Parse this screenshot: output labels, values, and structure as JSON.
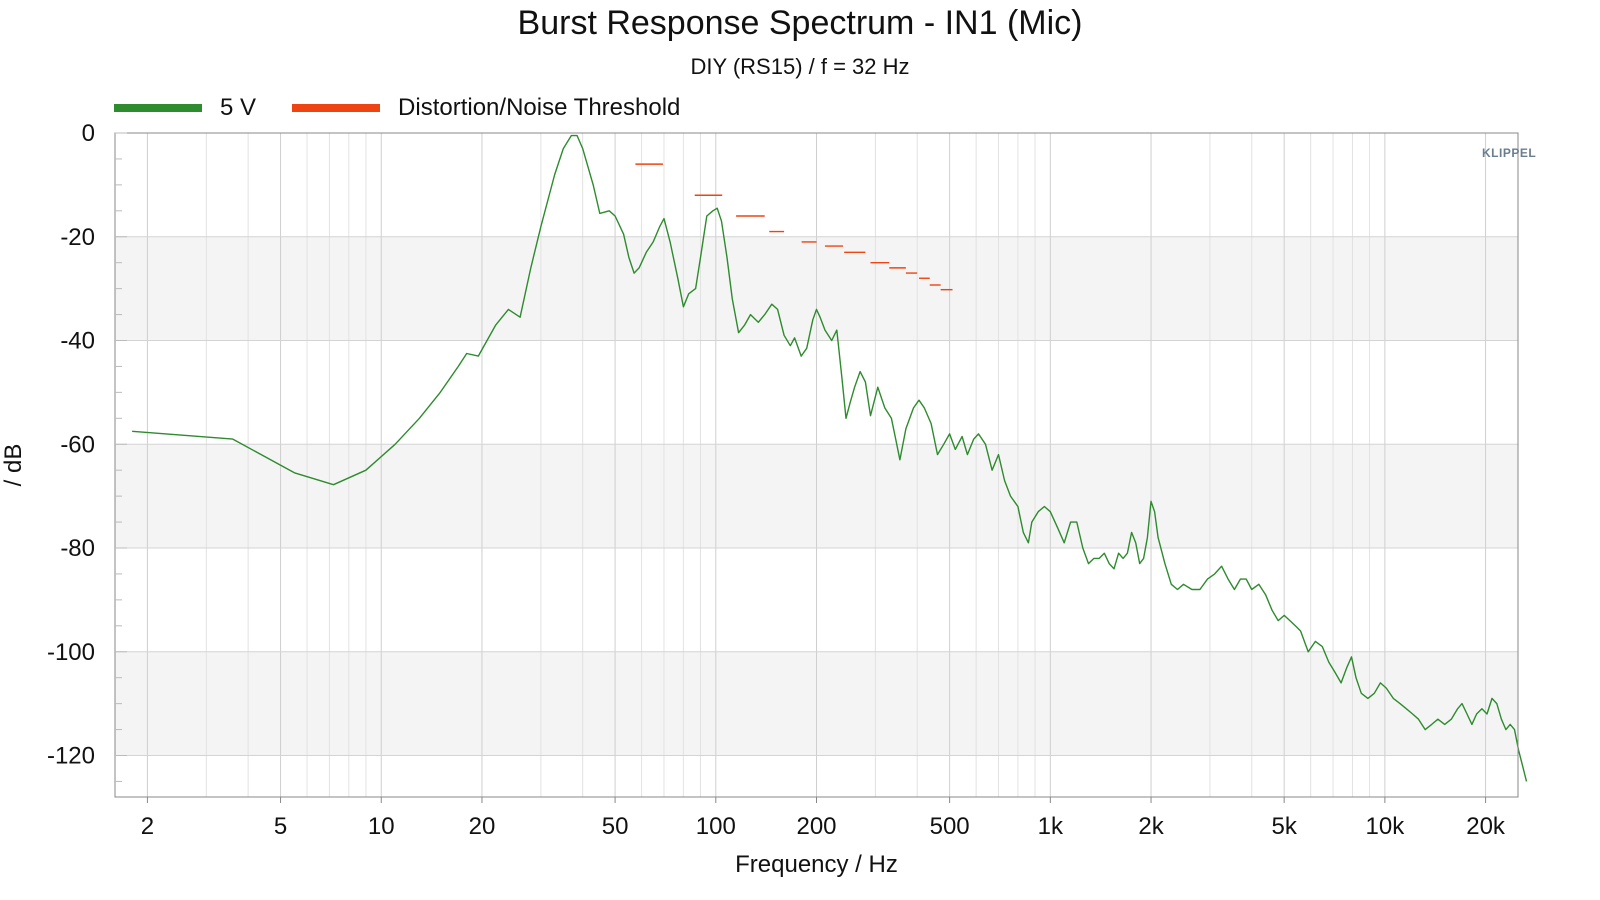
{
  "chart_data": {
    "type": "line",
    "title": "Burst Response Spectrum - IN1 (Mic)",
    "subtitle": "DIY (RS15) / f = 32 Hz",
    "xlabel": "Frequency / Hz",
    "ylabel": "/ dB",
    "xscale": "log",
    "xlim": [
      1.6,
      25000
    ],
    "ylim": [
      -128,
      0
    ],
    "grid": true,
    "legend_placement": "top-left",
    "x_ticks": [
      {
        "value": 2,
        "label": "2"
      },
      {
        "value": 5,
        "label": "5"
      },
      {
        "value": 10,
        "label": "10"
      },
      {
        "value": 20,
        "label": "20"
      },
      {
        "value": 50,
        "label": "50"
      },
      {
        "value": 100,
        "label": "100"
      },
      {
        "value": 200,
        "label": "200"
      },
      {
        "value": 500,
        "label": "500"
      },
      {
        "value": 1000,
        "label": "1k"
      },
      {
        "value": 2000,
        "label": "2k"
      },
      {
        "value": 5000,
        "label": "5k"
      },
      {
        "value": 10000,
        "label": "10k"
      },
      {
        "value": 20000,
        "label": "20k"
      }
    ],
    "y_ticks": [
      0,
      -20,
      -40,
      -60,
      -80,
      -100,
      -120
    ],
    "series": [
      {
        "name": "5 V",
        "color": "#2e8b2e",
        "style": "line",
        "points": [
          [
            1.8,
            -57.5
          ],
          [
            3.6,
            -59
          ],
          [
            5.5,
            -65.5
          ],
          [
            7.2,
            -67.8
          ],
          [
            9,
            -65
          ],
          [
            11,
            -60
          ],
          [
            13,
            -55
          ],
          [
            15,
            -50
          ],
          [
            17,
            -45
          ],
          [
            18,
            -42.5
          ],
          [
            19.5,
            -43
          ],
          [
            22,
            -37
          ],
          [
            24,
            -34
          ],
          [
            26,
            -35.5
          ],
          [
            28,
            -26
          ],
          [
            30,
            -18
          ],
          [
            33,
            -8
          ],
          [
            35,
            -3
          ],
          [
            37,
            -0.5
          ],
          [
            38.5,
            -0.5
          ],
          [
            40,
            -3
          ],
          [
            43,
            -10
          ],
          [
            45,
            -15.5
          ],
          [
            48,
            -15
          ],
          [
            50,
            -16
          ],
          [
            53,
            -19.5
          ],
          [
            55,
            -24
          ],
          [
            57,
            -27
          ],
          [
            59,
            -26
          ],
          [
            62,
            -23
          ],
          [
            65,
            -21
          ],
          [
            68,
            -18
          ],
          [
            70,
            -16.5
          ],
          [
            73,
            -21
          ],
          [
            77,
            -28
          ],
          [
            80,
            -33.5
          ],
          [
            83,
            -31
          ],
          [
            87,
            -30
          ],
          [
            90,
            -24
          ],
          [
            94,
            -16
          ],
          [
            98,
            -15
          ],
          [
            101,
            -14.5
          ],
          [
            104,
            -17
          ],
          [
            108,
            -24
          ],
          [
            112,
            -32
          ],
          [
            117,
            -38.5
          ],
          [
            122,
            -37
          ],
          [
            127,
            -35
          ],
          [
            134,
            -36.5
          ],
          [
            140,
            -35
          ],
          [
            147,
            -33
          ],
          [
            153,
            -34
          ],
          [
            160,
            -39
          ],
          [
            167,
            -41
          ],
          [
            172,
            -39.5
          ],
          [
            180,
            -43
          ],
          [
            187,
            -41.5
          ],
          [
            195,
            -36
          ],
          [
            200,
            -34
          ],
          [
            205,
            -35.5
          ],
          [
            212,
            -38
          ],
          [
            222,
            -40
          ],
          [
            230,
            -38
          ],
          [
            238,
            -47
          ],
          [
            245,
            -55
          ],
          [
            252,
            -52
          ],
          [
            260,
            -49
          ],
          [
            270,
            -46
          ],
          [
            280,
            -48
          ],
          [
            290,
            -54.5
          ],
          [
            305,
            -49
          ],
          [
            320,
            -53
          ],
          [
            335,
            -55
          ],
          [
            345,
            -59
          ],
          [
            355,
            -63
          ],
          [
            370,
            -57
          ],
          [
            390,
            -53
          ],
          [
            405,
            -51.5
          ],
          [
            420,
            -53
          ],
          [
            440,
            -56
          ],
          [
            460,
            -62
          ],
          [
            480,
            -60
          ],
          [
            500,
            -58
          ],
          [
            520,
            -61
          ],
          [
            545,
            -58.5
          ],
          [
            565,
            -62
          ],
          [
            590,
            -59
          ],
          [
            610,
            -58
          ],
          [
            640,
            -60
          ],
          [
            670,
            -65
          ],
          [
            700,
            -62
          ],
          [
            730,
            -67
          ],
          [
            760,
            -70
          ],
          [
            800,
            -72
          ],
          [
            830,
            -77
          ],
          [
            860,
            -79
          ],
          [
            880,
            -75
          ],
          [
            920,
            -73
          ],
          [
            960,
            -72
          ],
          [
            1000,
            -73
          ],
          [
            1050,
            -76
          ],
          [
            1100,
            -79
          ],
          [
            1150,
            -75
          ],
          [
            1200,
            -75
          ],
          [
            1250,
            -80
          ],
          [
            1300,
            -83
          ],
          [
            1350,
            -82
          ],
          [
            1400,
            -82
          ],
          [
            1450,
            -81
          ],
          [
            1500,
            -83
          ],
          [
            1550,
            -84
          ],
          [
            1600,
            -81
          ],
          [
            1650,
            -82
          ],
          [
            1700,
            -81
          ],
          [
            1750,
            -77
          ],
          [
            1800,
            -79
          ],
          [
            1850,
            -83
          ],
          [
            1900,
            -82
          ],
          [
            1950,
            -78
          ],
          [
            2000,
            -71
          ],
          [
            2050,
            -73
          ],
          [
            2100,
            -78
          ],
          [
            2200,
            -83
          ],
          [
            2300,
            -87
          ],
          [
            2400,
            -88
          ],
          [
            2500,
            -87
          ],
          [
            2650,
            -88
          ],
          [
            2800,
            -88
          ],
          [
            2950,
            -86
          ],
          [
            3100,
            -85
          ],
          [
            3250,
            -83.5
          ],
          [
            3400,
            -86
          ],
          [
            3550,
            -88
          ],
          [
            3700,
            -86
          ],
          [
            3850,
            -86
          ],
          [
            4000,
            -88
          ],
          [
            4200,
            -87
          ],
          [
            4400,
            -89
          ],
          [
            4600,
            -92
          ],
          [
            4800,
            -94
          ],
          [
            5000,
            -93
          ],
          [
            5200,
            -94
          ],
          [
            5400,
            -95
          ],
          [
            5600,
            -96
          ],
          [
            5900,
            -100
          ],
          [
            6200,
            -98
          ],
          [
            6500,
            -99
          ],
          [
            6800,
            -102
          ],
          [
            7100,
            -104
          ],
          [
            7400,
            -106
          ],
          [
            7700,
            -103
          ],
          [
            7950,
            -101
          ],
          [
            8200,
            -105
          ],
          [
            8500,
            -108
          ],
          [
            8900,
            -109
          ],
          [
            9300,
            -108
          ],
          [
            9700,
            -106
          ],
          [
            10100,
            -107
          ],
          [
            10600,
            -109
          ],
          [
            11100,
            -110
          ],
          [
            11600,
            -111
          ],
          [
            12100,
            -112
          ],
          [
            12600,
            -113
          ],
          [
            13200,
            -115
          ],
          [
            13800,
            -114
          ],
          [
            14400,
            -113
          ],
          [
            15100,
            -114
          ],
          [
            15800,
            -113
          ],
          [
            16500,
            -111
          ],
          [
            17000,
            -110
          ],
          [
            17600,
            -112
          ],
          [
            18200,
            -114
          ],
          [
            18800,
            -112
          ],
          [
            19500,
            -111
          ],
          [
            20200,
            -112
          ],
          [
            20900,
            -109
          ],
          [
            21600,
            -110
          ],
          [
            22300,
            -113
          ],
          [
            23000,
            -115
          ],
          [
            23700,
            -114
          ],
          [
            24400,
            -115
          ],
          [
            25100,
            -119
          ],
          [
            25800,
            -122
          ],
          [
            26500,
            -125
          ]
        ]
      },
      {
        "name": "Distortion/Noise Threshold",
        "color": "#ee4411",
        "style": "steps",
        "segments": [
          [
            57.5,
            69.5,
            -6
          ],
          [
            86.5,
            104.5,
            -12
          ],
          [
            115,
            140,
            -16
          ],
          [
            144.5,
            160,
            -19
          ],
          [
            180.5,
            200,
            -21
          ],
          [
            212,
            240,
            -21.8
          ],
          [
            242,
            280,
            -23
          ],
          [
            290,
            330,
            -25
          ],
          [
            330,
            370,
            -26
          ],
          [
            370,
            400,
            -27
          ],
          [
            405,
            436,
            -28
          ],
          [
            436,
            470,
            -29.3
          ],
          [
            470,
            510,
            -30.2
          ]
        ]
      }
    ],
    "logo_text": "KLIPPEL"
  }
}
